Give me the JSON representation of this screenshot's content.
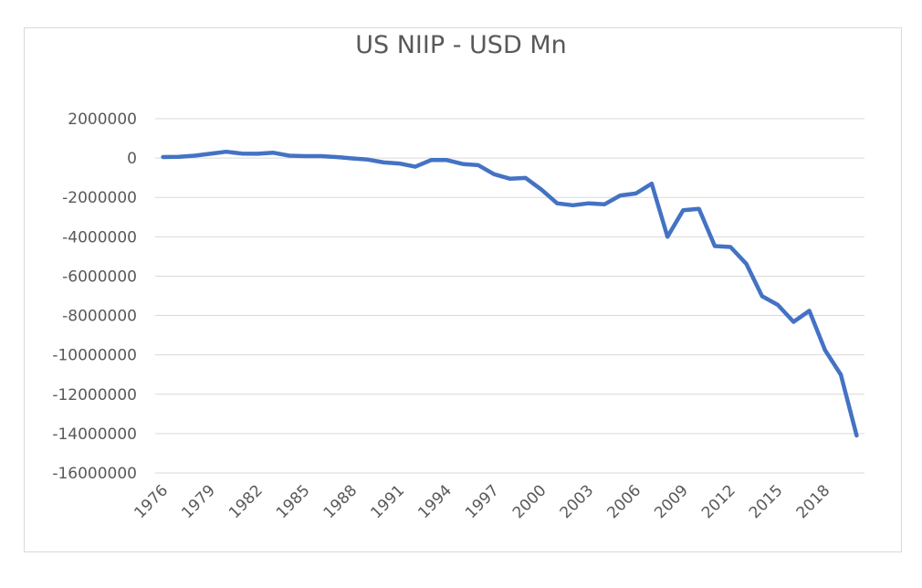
{
  "chart_data": {
    "type": "line",
    "title": "US NIIP - USD Mn",
    "xlabel": "",
    "ylabel": "",
    "ylim": [
      -16000000,
      2000000
    ],
    "ytick_step": 2000000,
    "grid": true,
    "legend": "none",
    "x_tick_labels": [
      "1976",
      "1979",
      "1982",
      "1985",
      "1988",
      "1991",
      "1994",
      "1997",
      "2000",
      "2003",
      "2006",
      "2009",
      "2012",
      "2015",
      "2018"
    ],
    "x": [
      1976,
      1977,
      1978,
      1979,
      1980,
      1981,
      1982,
      1983,
      1984,
      1985,
      1986,
      1987,
      1988,
      1989,
      1990,
      1991,
      1992,
      1993,
      1994,
      1995,
      1996,
      1997,
      1998,
      1999,
      2000,
      2001,
      2002,
      2003,
      2004,
      2005,
      2006,
      2007,
      2008,
      2009,
      2010,
      2011,
      2012,
      2013,
      2014,
      2015,
      2016,
      2017,
      2018,
      2019,
      2020
    ],
    "series": [
      {
        "color": "#4472c4",
        "values": [
          50000,
          60000,
          120000,
          220000,
          320000,
          230000,
          220000,
          270000,
          120000,
          100000,
          100000,
          50000,
          -20000,
          -80000,
          -220000,
          -280000,
          -440000,
          -100000,
          -100000,
          -300000,
          -360000,
          -820000,
          -1050000,
          -1010000,
          -1600000,
          -2300000,
          -2400000,
          -2300000,
          -2350000,
          -1900000,
          -1800000,
          -1300000,
          -4000000,
          -2650000,
          -2580000,
          -4470000,
          -4520000,
          -5370000,
          -7020000,
          -7460000,
          -8320000,
          -7760000,
          -9760000,
          -11010000,
          -14100000
        ]
      }
    ]
  }
}
